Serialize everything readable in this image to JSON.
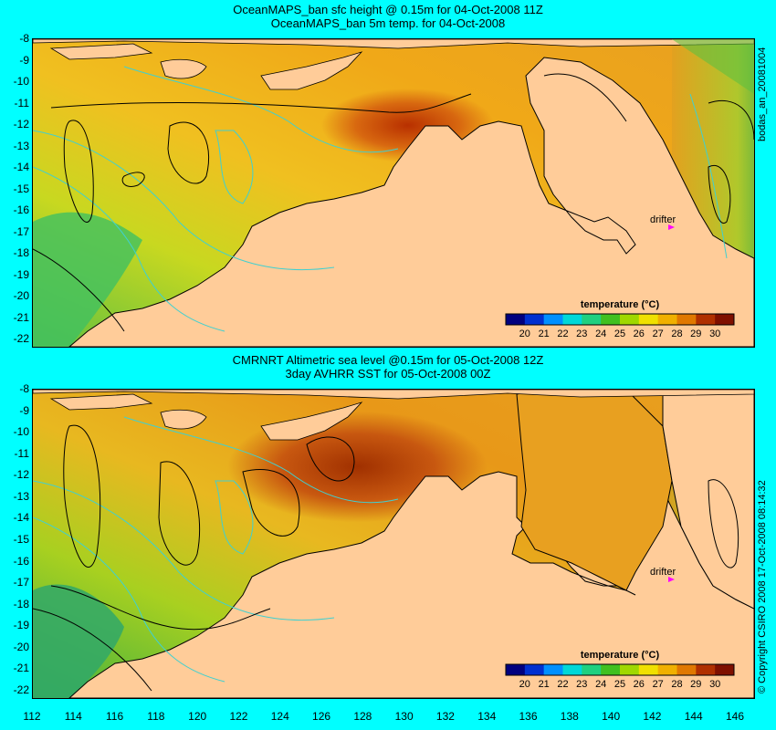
{
  "top_panel": {
    "title_line1": "OceanMAPS_ban sfc height @ 0.15m for 04-Oct-2008 11Z",
    "title_line2": "OceanMAPS_ban 5m temp. for 04-Oct-2008",
    "drifter_label": "drifter",
    "side_label": "bodas_an_20081004"
  },
  "bottom_panel": {
    "title_line1": "CMRNRT Altimetric sea level  @0.15m  for 05-Oct-2008 12Z",
    "title_line2": "3day AVHRR SST for 05-Oct-2008 00Z",
    "drifter_label": "drifter",
    "side_label": "© Copyright CSIRO 2008   17-Oct-2008 08:14:32"
  },
  "colorbar": {
    "title": "temperature (°C)",
    "ticks": [
      "20",
      "21",
      "22",
      "23",
      "24",
      "25",
      "26",
      "27",
      "28",
      "29",
      "30"
    ],
    "colors": [
      "#00007f",
      "#0030d0",
      "#0090ff",
      "#00d8d8",
      "#20d080",
      "#40c020",
      "#a0d800",
      "#f0e000",
      "#f0b000",
      "#e07800",
      "#b03000",
      "#7f1000"
    ]
  },
  "axes": {
    "lat_ticks": [
      "-8",
      "-9",
      "-10",
      "-11",
      "-12",
      "-13",
      "-14",
      "-15",
      "-16",
      "-17",
      "-18",
      "-19",
      "-20",
      "-21",
      "-22"
    ],
    "lon_ticks": [
      "112",
      "114",
      "116",
      "118",
      "120",
      "122",
      "124",
      "126",
      "128",
      "130",
      "132",
      "134",
      "136",
      "138",
      "140",
      "142",
      "144",
      "146"
    ]
  },
  "colors": {
    "background": "#00ffff",
    "land": "#ffcc99",
    "sea_warm": "#f0b020",
    "sea_hot": "#b04000",
    "sea_mid": "#d8d020",
    "sea_cool": "#60c020",
    "bathymetry": "#40d0d0",
    "drifter": "#ff00ff"
  }
}
